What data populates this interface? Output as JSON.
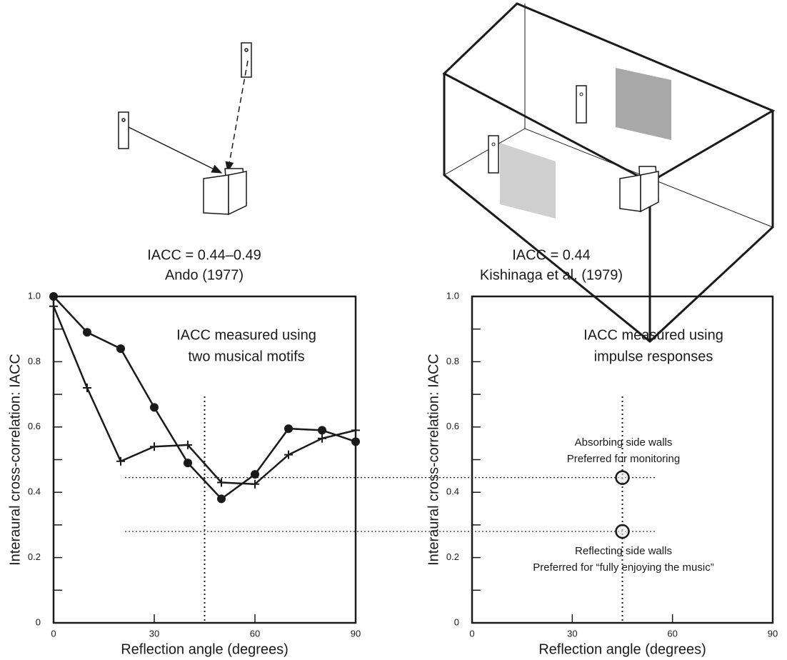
{
  "chart_data": [
    {
      "type": "line",
      "title": "IACC = 0.44–0.49",
      "subtitle": "Ando (1977)",
      "xlabel": "Reflection angle (degrees)",
      "ylabel": "Interaural cross-correlation: IACC",
      "annotations": [
        "IACC measured using",
        "two musical motifs"
      ],
      "x": [
        0,
        10,
        20,
        30,
        40,
        50,
        60,
        70,
        80,
        90
      ],
      "series": [
        {
          "marker": "circle",
          "color": "#1a1a1a",
          "values": [
            1.0,
            0.89,
            0.84,
            0.66,
            0.49,
            0.38,
            0.455,
            0.595,
            0.59,
            0.555
          ]
        },
        {
          "marker": "plus",
          "color": "#1a1a1a",
          "values": [
            0.97,
            0.72,
            0.495,
            0.54,
            0.545,
            0.43,
            0.425,
            0.515,
            0.565,
            0.59
          ]
        }
      ],
      "reference_x": 45,
      "xlim": [
        0,
        90
      ],
      "ylim": [
        0,
        1
      ],
      "xticks": [
        0,
        30,
        60,
        90
      ],
      "yticks": [
        0,
        0.2,
        0.4,
        0.6,
        0.8,
        {
          "value": 1,
          "label": "1.0"
        }
      ],
      "minor_yticks": [
        0.1,
        0.3,
        0.5,
        0.7,
        0.9
      ]
    },
    {
      "type": "scatter",
      "title": "IACC = 0.44",
      "subtitle": "Kishinaga et al. (1979)",
      "xlabel": "Reflection angle (degrees)",
      "ylabel": "Interaural cross-correlation: IACC",
      "annotations": [
        "IACC measured using",
        "impulse responses",
        "Absorbing side walls",
        "Preferred for monitoring",
        "Reflecting side walls",
        "Preferred for “fully enjoying the music”"
      ],
      "x": [
        45,
        45
      ],
      "series": [
        {
          "marker": "open-circle",
          "color": "#1a1a1a",
          "values": [
            0.445,
            0.28
          ]
        }
      ],
      "xlim": [
        0,
        90
      ],
      "ylim": [
        0,
        1
      ],
      "xticks": [
        0,
        30,
        60,
        90
      ],
      "yticks": [
        0,
        0.2,
        0.4,
        0.6,
        0.8,
        {
          "value": 1,
          "label": "1.0"
        }
      ],
      "minor_yticks": [
        0.1,
        0.3,
        0.5,
        0.7,
        0.9
      ]
    }
  ]
}
